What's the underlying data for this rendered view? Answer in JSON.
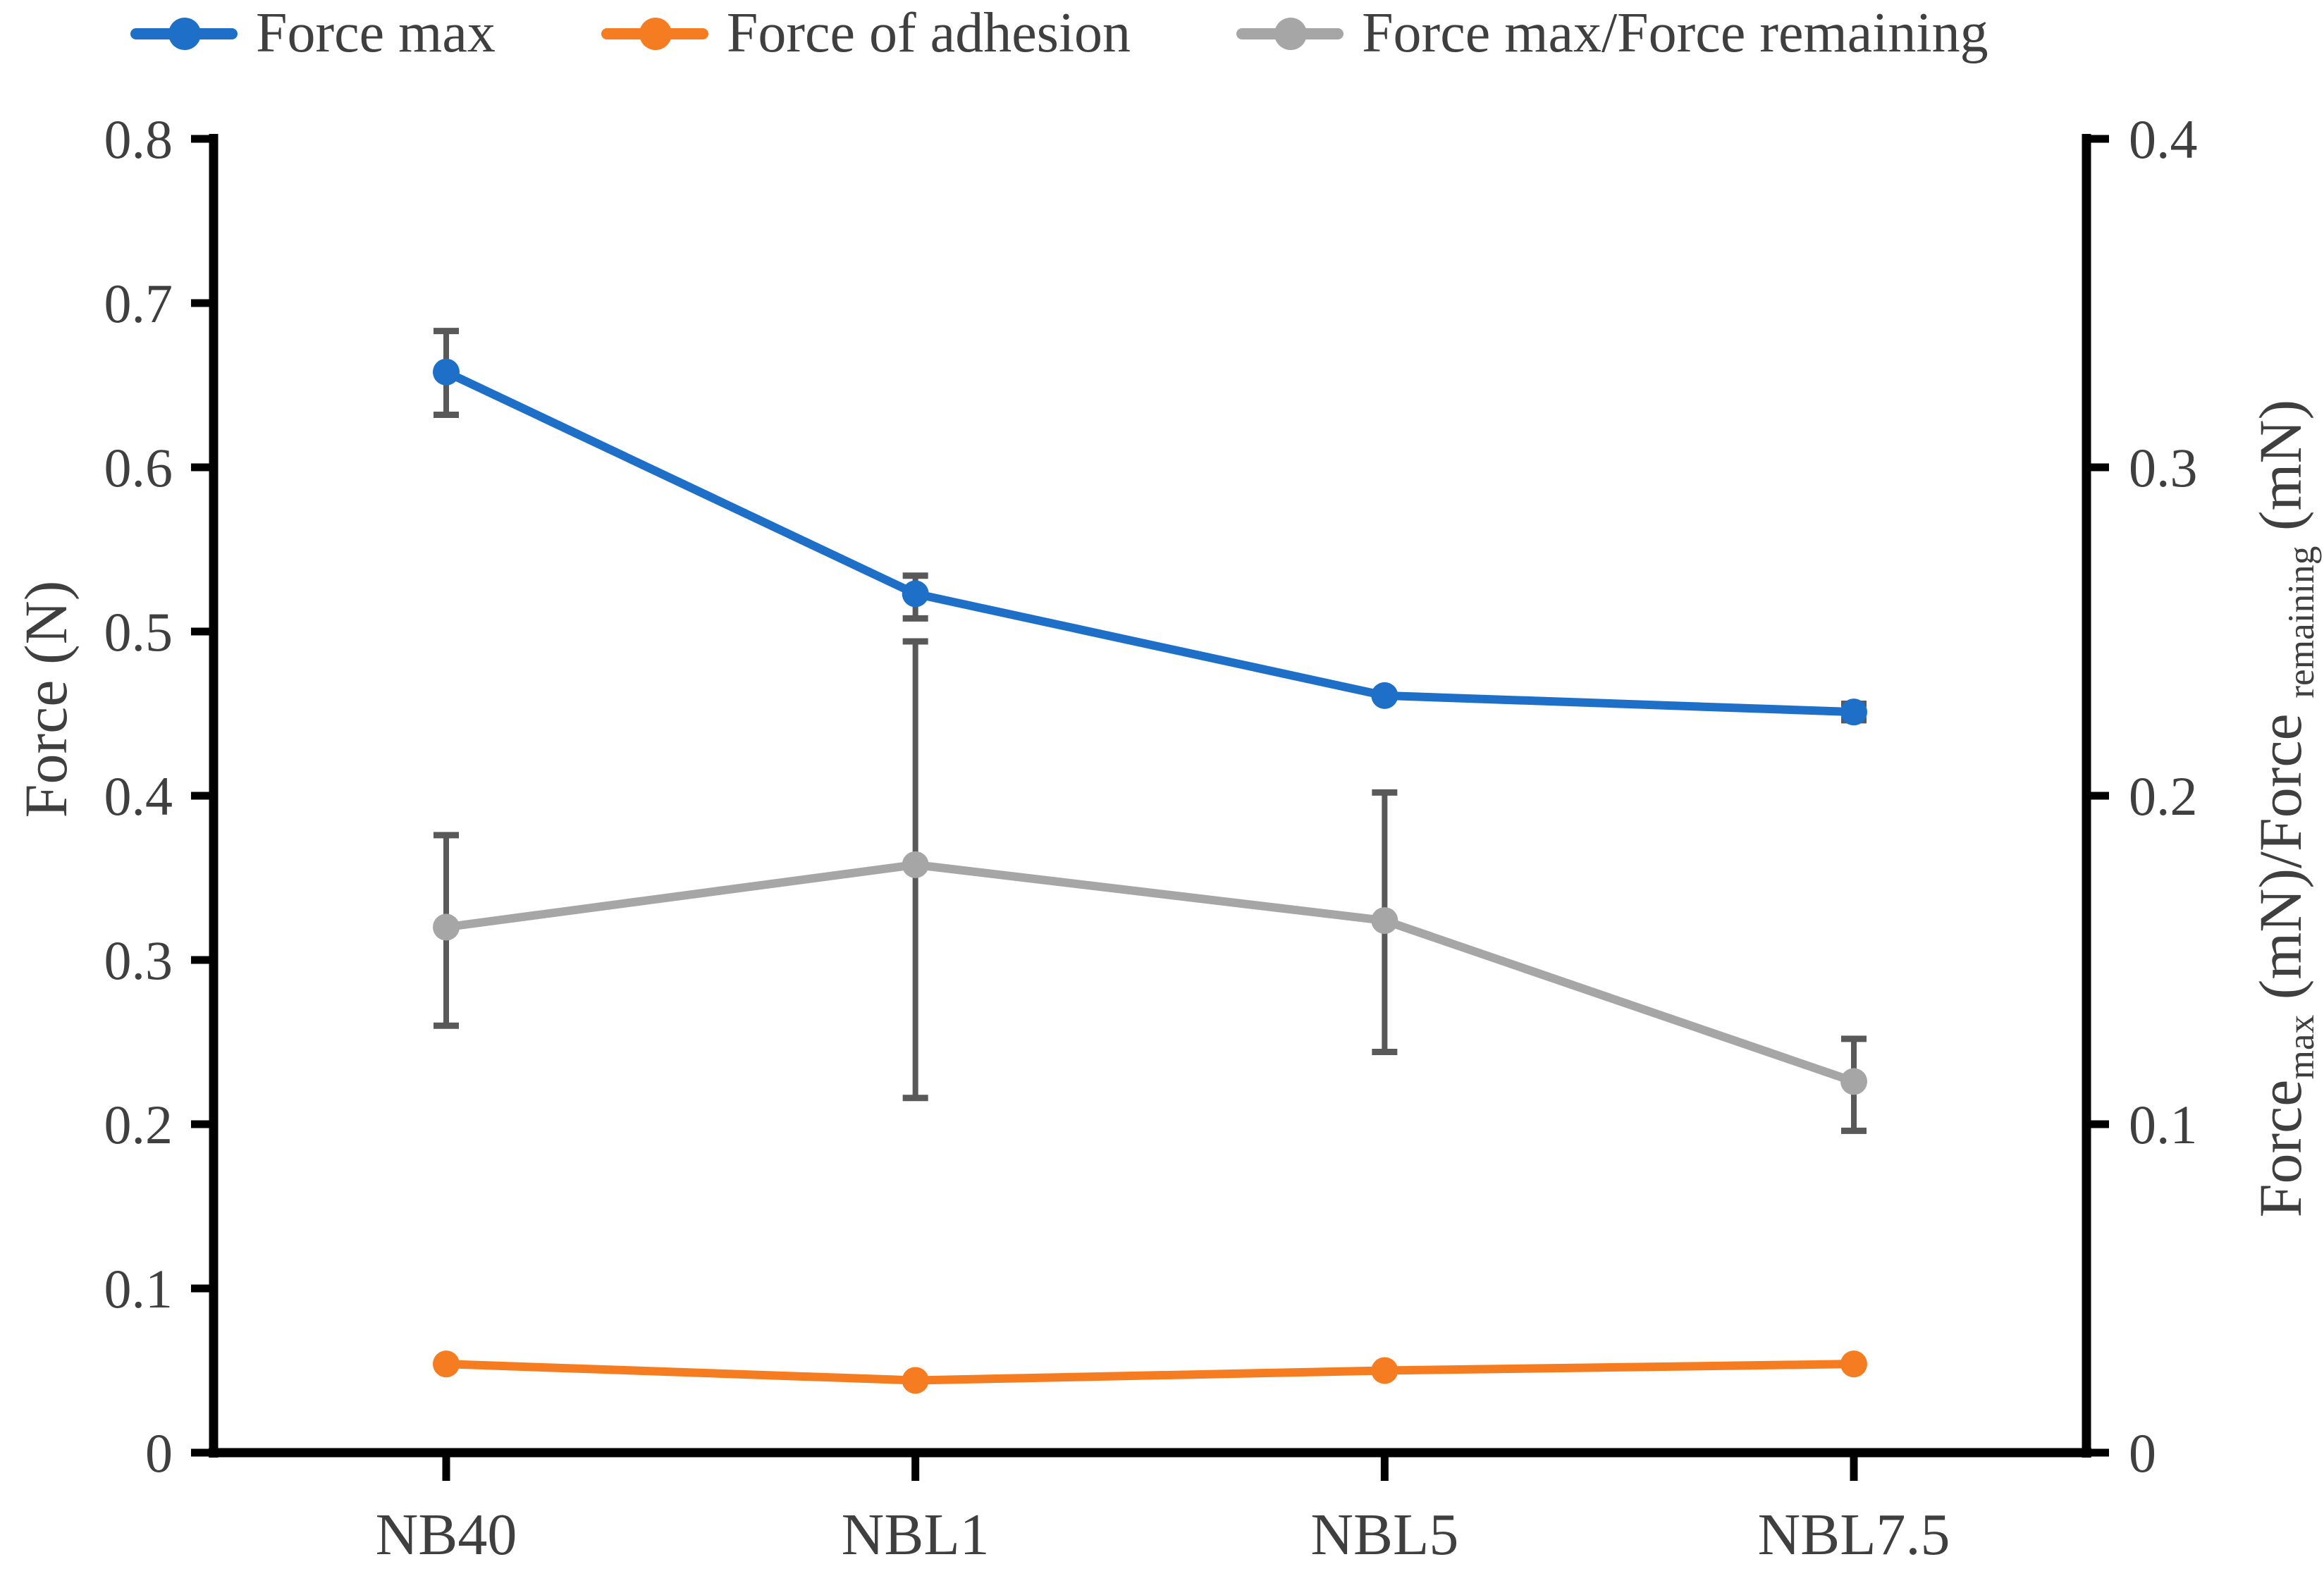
{
  "figure": {
    "background": "#ffffff",
    "axis_line_color": "#000000",
    "tick_label_color": "#3f3f3f",
    "error_bar_color": "#595959"
  },
  "legend": {
    "position": "top",
    "items": [
      {
        "label": "Force max",
        "color": "#1e6fc8"
      },
      {
        "label": "Force of adhesion",
        "color": "#f57c20"
      },
      {
        "label": "Force max/Force remaining",
        "color": "#a6a6a6"
      }
    ]
  },
  "chart_data": {
    "type": "line",
    "categories": [
      "NB40",
      "NBL1",
      "NBL5",
      "NBL7.5"
    ],
    "series": [
      {
        "name": "Force max",
        "axis": "left",
        "color": "#1e6fc8",
        "values": [
          0.658,
          0.523,
          0.461,
          0.451
        ],
        "err_plus": [
          0.025,
          0.011,
          0,
          0.005
        ],
        "err_minus": [
          0.026,
          0.015,
          0,
          0.005
        ]
      },
      {
        "name": "Force of adhesion",
        "axis": "left",
        "color": "#f57c20",
        "values": [
          0.054,
          0.044,
          0.05,
          0.054
        ],
        "err_plus": [
          0,
          0,
          0,
          0
        ],
        "err_minus": [
          0,
          0,
          0,
          0
        ]
      },
      {
        "name": "Force max/Force remaining",
        "axis": "right",
        "color": "#a6a6a6",
        "values": [
          0.16,
          0.179,
          0.162,
          0.113
        ],
        "err_plus": [
          0.028,
          0.068,
          0.039,
          0.013
        ],
        "err_minus": [
          0.03,
          0.071,
          0.04,
          0.015
        ]
      }
    ],
    "left_axis": {
      "title": "Force (N)",
      "min": 0,
      "max": 0.8,
      "step": 0.1,
      "tick_labels": [
        "0.8",
        "0.7",
        "0.6",
        "0.5",
        "0.4",
        "0.3",
        "0.2",
        "0.1",
        "0"
      ]
    },
    "right_axis": {
      "title_plain": "Force max (mN)/Force remaining (mN)",
      "title_segments": [
        {
          "text": "Force",
          "sub": false
        },
        {
          "text": "max",
          "sub": true
        },
        {
          "text": " (mN)/Force ",
          "sub": false
        },
        {
          "text": "remaining",
          "sub": true
        },
        {
          "text": " (mN)",
          "sub": false
        }
      ],
      "min": 0,
      "max": 0.4,
      "step": 0.1,
      "tick_labels": [
        "0.4",
        "0.3",
        "0.2",
        "0.1",
        "0"
      ]
    },
    "x_axis": {
      "labels": [
        "NB40",
        "NBL1",
        "NBL5",
        "NBL7.5"
      ]
    },
    "grid": "off",
    "legend_position": "top"
  }
}
